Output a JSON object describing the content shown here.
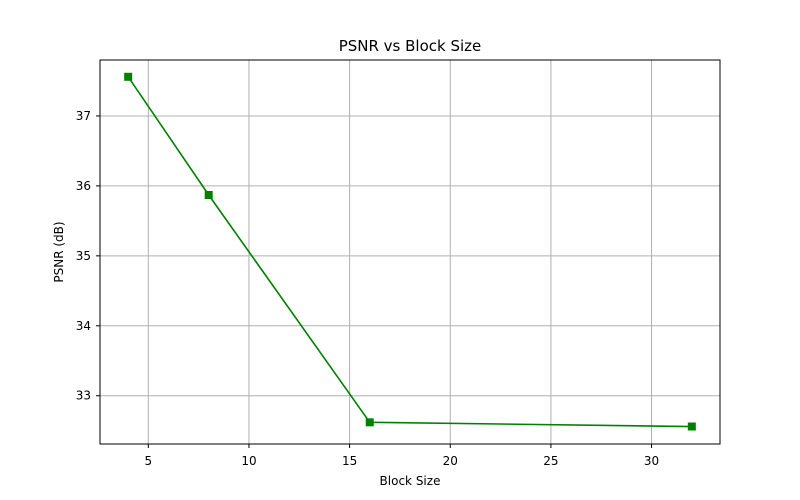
{
  "chart_data": {
    "type": "line",
    "title": "PSNR vs Block Size",
    "xlabel": "Block Size",
    "ylabel": "PSNR (dB)",
    "xlim": [
      2.6,
      33.4
    ],
    "ylim": [
      32.31,
      37.8
    ],
    "x_ticks": [
      5,
      10,
      15,
      20,
      25,
      30
    ],
    "y_ticks": [
      33,
      34,
      35,
      36,
      37
    ],
    "grid": true,
    "series": [
      {
        "x": [
          4,
          8,
          16,
          32
        ],
        "y": [
          37.56,
          35.87,
          32.62,
          32.56
        ],
        "color": "#008000",
        "marker": "square"
      }
    ]
  }
}
